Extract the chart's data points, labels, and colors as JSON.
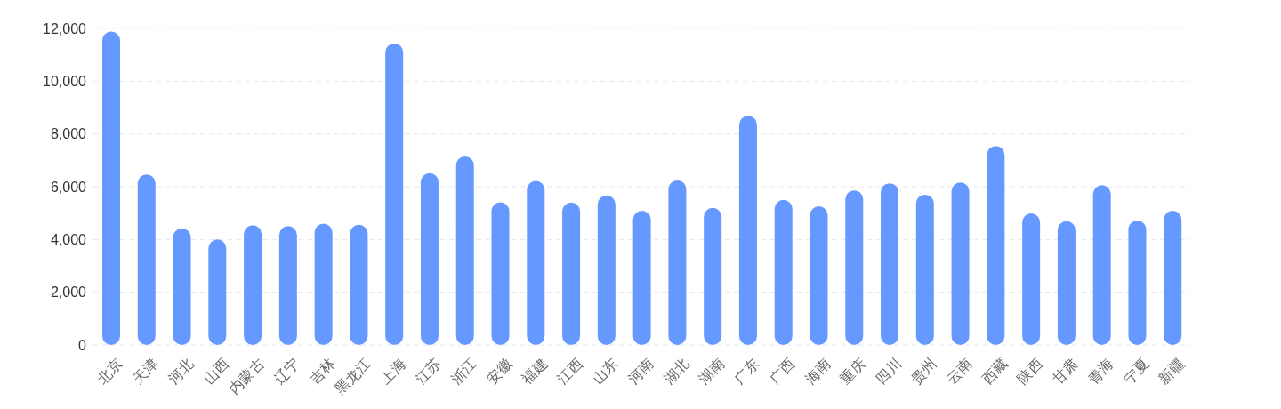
{
  "chart_data": {
    "type": "bar",
    "categories": [
      "北京",
      "天津",
      "河北",
      "山西",
      "内蒙古",
      "辽宁",
      "吉林",
      "黑龙江",
      "上海",
      "江苏",
      "浙江",
      "安徽",
      "福建",
      "江西",
      "山东",
      "河南",
      "湖北",
      "湖南",
      "广东",
      "广西",
      "海南",
      "重庆",
      "四川",
      "贵州",
      "云南",
      "西藏",
      "陕西",
      "甘肃",
      "青海",
      "宁夏",
      "新疆"
    ],
    "values": [
      11880,
      6460,
      4420,
      4000,
      4540,
      4510,
      4600,
      4560,
      11430,
      6510,
      7150,
      5410,
      6220,
      5400,
      5670,
      5090,
      6240,
      5200,
      8690,
      5500,
      5260,
      5860,
      6130,
      5700,
      6160,
      7540,
      4990,
      4690,
      6060,
      4720,
      5090
    ],
    "color": "#6699ff",
    "ylim": [
      0,
      12000
    ],
    "yticks": [
      0,
      {
        "value": 2000,
        "label": "2,000"
      },
      {
        "value": 4000,
        "label": "4,000"
      },
      {
        "value": 6000,
        "label": "6,000"
      },
      {
        "value": 8000,
        "label": "8,000"
      },
      {
        "value": 10000,
        "label": "10,000"
      },
      {
        "value": 12000,
        "label": "12,000"
      }
    ],
    "grid": "y"
  }
}
